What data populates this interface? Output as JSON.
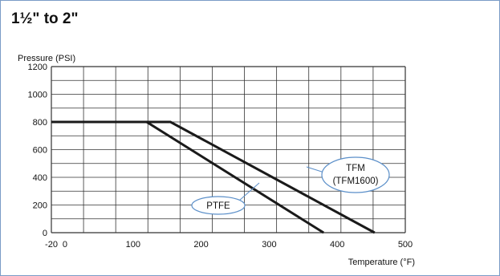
{
  "title": "1½\" to 2\"",
  "chart_data": {
    "type": "line",
    "ylabel": "Pressure (PSI)",
    "xlabel": "Temperature (°F)",
    "xlim": [
      -20,
      500
    ],
    "ylim": [
      0,
      1200
    ],
    "x_ticks": [
      "-20",
      "0",
      "100",
      "200",
      "300",
      "400",
      "500"
    ],
    "y_ticks": [
      "0",
      "200",
      "400",
      "600",
      "800",
      "1000",
      "1200"
    ],
    "grid": true,
    "series": [
      {
        "name": "PTFE",
        "points": [
          [
            -20,
            800
          ],
          [
            120,
            800
          ],
          [
            380,
            0
          ]
        ]
      },
      {
        "name": "TFM\n(TFM1600)",
        "points": [
          [
            -20,
            800
          ],
          [
            155,
            800
          ],
          [
            455,
            0
          ]
        ]
      }
    ],
    "annotations": [
      {
        "label": "PTFE",
        "series": "PTFE"
      },
      {
        "label_lines": [
          "TFM",
          "(TFM1600)"
        ],
        "series": "TFM\n(TFM1600)"
      }
    ]
  }
}
